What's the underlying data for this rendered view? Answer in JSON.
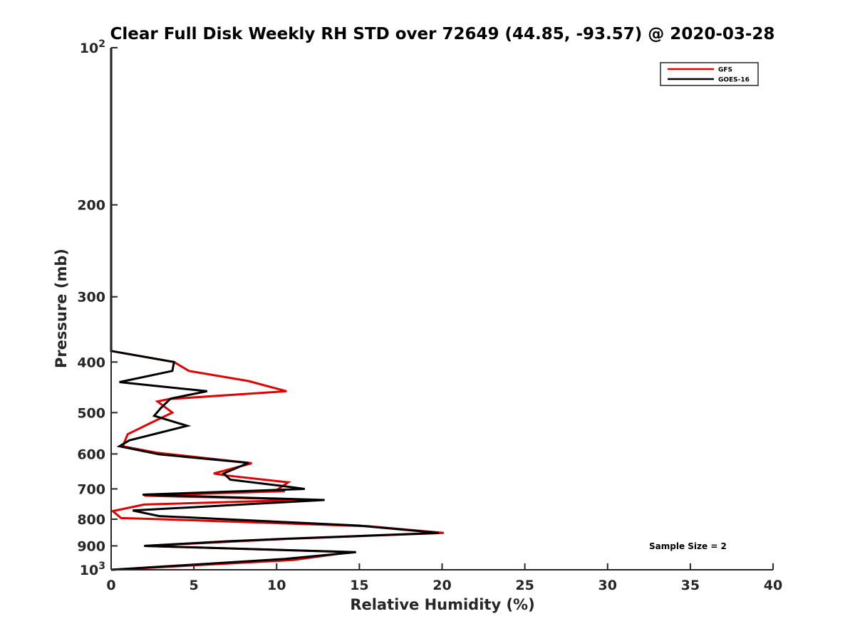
{
  "chart_data": {
    "type": "line",
    "title": "Clear Full Disk Weekly RH STD over 72649 (44.85, -93.57) @ 2020-03-28",
    "xlabel": "Relative Humidity (%)",
    "ylabel": "Pressure (mb)",
    "xlim": [
      0,
      40
    ],
    "ylim": [
      100,
      1000
    ],
    "y_scale": "log",
    "y_reversed": true,
    "x_ticks": [
      0,
      5,
      10,
      15,
      20,
      25,
      30,
      35,
      40
    ],
    "y_ticks": [
      {
        "value": 100,
        "base": "10",
        "exp": "2"
      },
      {
        "value": 200,
        "label": "200"
      },
      {
        "value": 300,
        "label": "300"
      },
      {
        "value": 400,
        "label": "400"
      },
      {
        "value": 500,
        "label": "500"
      },
      {
        "value": 600,
        "label": "600"
      },
      {
        "value": 700,
        "label": "700"
      },
      {
        "value": 800,
        "label": "800"
      },
      {
        "value": 900,
        "label": "900"
      },
      {
        "value": 1000,
        "base": "10",
        "exp": "3"
      }
    ],
    "grid": false,
    "legend_position": "top-right",
    "annotation": "Sample Size = 2",
    "series": [
      {
        "name": "GFS",
        "color": "#e00000",
        "points": [
          [
            0,
            100
          ],
          [
            0,
            381
          ],
          [
            3.8,
            400
          ],
          [
            4.7,
            416
          ],
          [
            8.3,
            435
          ],
          [
            10.6,
            455
          ],
          [
            3.5,
            471
          ],
          [
            2.8,
            476
          ],
          [
            3.7,
            500
          ],
          [
            2.3,
            525
          ],
          [
            1.0,
            550
          ],
          [
            0.7,
            580
          ],
          [
            2.8,
            597
          ],
          [
            8.5,
            625
          ],
          [
            6.2,
            654
          ],
          [
            7.0,
            660
          ],
          [
            10.7,
            680
          ],
          [
            10.1,
            700
          ],
          [
            10.5,
            707
          ],
          [
            2.0,
            721
          ],
          [
            12.0,
            734
          ],
          [
            2.0,
            750
          ],
          [
            0.1,
            772
          ],
          [
            0.6,
            796
          ],
          [
            3.0,
            800
          ],
          [
            15.5,
            825
          ],
          [
            20.1,
            850
          ],
          [
            10.5,
            873
          ],
          [
            2.0,
            900
          ],
          [
            14.5,
            925
          ],
          [
            11.0,
            958
          ],
          [
            0.0,
            1000
          ]
        ]
      },
      {
        "name": "GOES-16",
        "color": "#000000",
        "points": [
          [
            0,
            100
          ],
          [
            0,
            381
          ],
          [
            3.8,
            400
          ],
          [
            3.7,
            416
          ],
          [
            0.5,
            437
          ],
          [
            5.8,
            455
          ],
          [
            3.6,
            470
          ],
          [
            3.0,
            490
          ],
          [
            2.6,
            507
          ],
          [
            4.6,
            530
          ],
          [
            1.1,
            565
          ],
          [
            0.5,
            580
          ],
          [
            2.9,
            601
          ],
          [
            8.3,
            624
          ],
          [
            6.8,
            654
          ],
          [
            7.2,
            672
          ],
          [
            10.2,
            690
          ],
          [
            11.7,
            700
          ],
          [
            1.9,
            718
          ],
          [
            12.9,
            735
          ],
          [
            1.3,
            770
          ],
          [
            2.9,
            789
          ],
          [
            15.0,
            823
          ],
          [
            19.8,
            850
          ],
          [
            10.6,
            872
          ],
          [
            7.0,
            882
          ],
          [
            2.0,
            900
          ],
          [
            14.8,
            925
          ],
          [
            10.5,
            953
          ],
          [
            0.0,
            1000
          ]
        ]
      }
    ]
  }
}
